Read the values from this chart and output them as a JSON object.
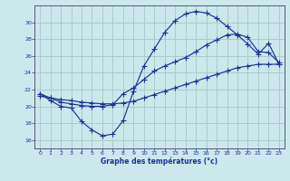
{
  "xlabel": "Graphe des températures (°c)",
  "bg_color": "#cce8ec",
  "grid_color": "#aacccc",
  "line_color": "#1a3399",
  "axis_color": "#555577",
  "xlim": [
    -0.5,
    23.5
  ],
  "ylim": [
    15.0,
    32.0
  ],
  "yticks": [
    16,
    18,
    20,
    22,
    24,
    26,
    28,
    30
  ],
  "xticks": [
    0,
    1,
    2,
    3,
    4,
    5,
    6,
    7,
    8,
    9,
    10,
    11,
    12,
    13,
    14,
    15,
    16,
    17,
    18,
    19,
    20,
    21,
    22,
    23
  ],
  "curve1_x": [
    0,
    1,
    2,
    3,
    4,
    5,
    6,
    7,
    8,
    9,
    10,
    11,
    12,
    13,
    14,
    15,
    16,
    17,
    18,
    19,
    20,
    21,
    22,
    23
  ],
  "curve1_y": [
    21.5,
    20.7,
    20.0,
    19.8,
    18.2,
    17.2,
    16.5,
    16.7,
    18.3,
    21.8,
    24.8,
    26.8,
    28.8,
    30.2,
    31.0,
    31.3,
    31.1,
    30.5,
    29.5,
    28.5,
    27.4,
    26.2,
    27.5,
    25.0
  ],
  "curve2_x": [
    0,
    1,
    2,
    3,
    4,
    5,
    6,
    7,
    8,
    9,
    10,
    11,
    12,
    13,
    14,
    15,
    16,
    17,
    18,
    19,
    20,
    21,
    22,
    23
  ],
  "curve2_y": [
    21.2,
    21.0,
    20.8,
    20.7,
    20.5,
    20.4,
    20.3,
    20.3,
    20.4,
    20.6,
    21.0,
    21.4,
    21.8,
    22.2,
    22.6,
    23.0,
    23.4,
    23.8,
    24.2,
    24.6,
    24.8,
    25.0,
    25.0,
    25.0
  ],
  "curve3_x": [
    0,
    1,
    2,
    3,
    4,
    5,
    6,
    7,
    8,
    9,
    10,
    11,
    12,
    13,
    14,
    15,
    16,
    17,
    18,
    19,
    20,
    21,
    22,
    23
  ],
  "curve3_y": [
    21.5,
    21.0,
    20.5,
    20.3,
    20.1,
    20.0,
    20.0,
    20.2,
    21.5,
    22.2,
    23.2,
    24.2,
    24.8,
    25.3,
    25.8,
    26.5,
    27.3,
    27.9,
    28.5,
    28.6,
    28.2,
    26.5,
    26.4,
    25.2
  ]
}
